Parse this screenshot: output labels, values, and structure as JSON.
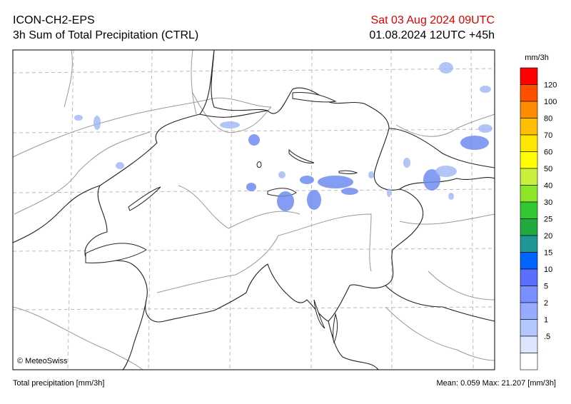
{
  "header": {
    "model": "ICON-CH2-EPS",
    "product": "3h Sum of Total Precipitation (CTRL)",
    "valid_time": "Sat 03 Aug 2024 09UTC",
    "run": "01.08.2024 12UTC +45h"
  },
  "colorbar": {
    "unit": "mm/3h",
    "labels": [
      "120",
      "100",
      "80",
      "70",
      "60",
      "50",
      "40",
      "30",
      "25",
      "20",
      "15",
      "10",
      "5",
      "2",
      "1",
      ".5"
    ],
    "colors": [
      "#ff0000",
      "#ff5000",
      "#ff8c00",
      "#ffbe00",
      "#ffe600",
      "#ffff00",
      "#c8f03c",
      "#8ce628",
      "#32c832",
      "#1eaa3c",
      "#1e9696",
      "#0064ff",
      "#5a6eff",
      "#7890ff",
      "#96aaff",
      "#b4c8ff",
      "#dce6ff",
      "#ffffff"
    ]
  },
  "credit": "© MeteoSwiss",
  "footer": {
    "variable": "Total precipitation [mm/3h]",
    "stats": "Mean:  0.059 Max:  21.207 [mm/3h]"
  }
}
